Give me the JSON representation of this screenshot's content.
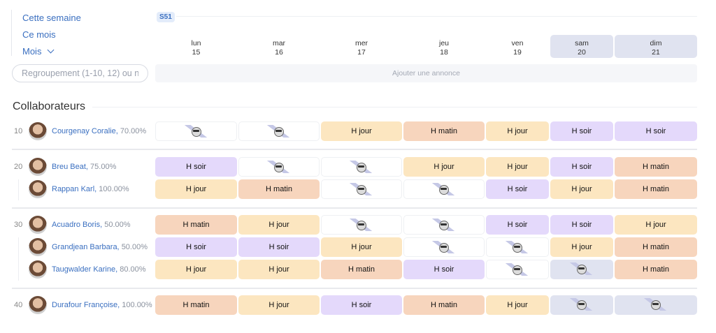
{
  "nav": {
    "this_week": "Cette semaine",
    "this_month": "Ce mois",
    "month": "Mois"
  },
  "search": {
    "placeholder": "Regroupement (1-10, 12) ou nc"
  },
  "week_badge": "S51",
  "days": [
    {
      "name": "lun",
      "num": "15",
      "weekend": false
    },
    {
      "name": "mar",
      "num": "16",
      "weekend": false
    },
    {
      "name": "mer",
      "num": "17",
      "weekend": false
    },
    {
      "name": "jeu",
      "num": "18",
      "weekend": false
    },
    {
      "name": "ven",
      "num": "19",
      "weekend": false
    },
    {
      "name": "sam",
      "num": "20",
      "weekend": true
    },
    {
      "name": "dim",
      "num": "21",
      "weekend": true
    }
  ],
  "add_announcement": "Ajouter une annonce",
  "section_title": "Collaborateurs",
  "shift_labels": {
    "jour": "H jour",
    "matin": "H matin",
    "soir": "H soir"
  },
  "colors": {
    "jour": "#fce6c0",
    "matin": "#f7d5bd",
    "soir": "#e4d9fb",
    "weekend": "#e0e3f0",
    "link": "#3a6fc0"
  },
  "off_icon": "sunglasses-smiley-icon",
  "groups": [
    {
      "number": "10",
      "members": [
        {
          "name": "Courgenay Coralie,",
          "rate": "70.00%",
          "shifts": [
            "off",
            "off",
            "jour",
            "matin",
            "jour",
            "soir",
            "soir"
          ]
        }
      ]
    },
    {
      "number": "20",
      "members": [
        {
          "name": "Breu Beat,",
          "rate": "75.00%",
          "shifts": [
            "soir",
            "off",
            "off",
            "jour",
            "jour",
            "soir",
            "matin"
          ]
        },
        {
          "name": "Rappan Karl,",
          "rate": "100.00%",
          "shifts": [
            "jour",
            "matin",
            "off",
            "off",
            "soir",
            "jour",
            "matin"
          ]
        }
      ]
    },
    {
      "number": "30",
      "members": [
        {
          "name": "Acuadro Boris,",
          "rate": "50.00%",
          "shifts": [
            "matin",
            "jour",
            "off",
            "off",
            "soir",
            "soir",
            "jour"
          ]
        },
        {
          "name": "Grandjean Barbara,",
          "rate": "50.00%",
          "shifts": [
            "soir",
            "soir",
            "jour",
            "off",
            "off",
            "jour",
            "matin"
          ]
        },
        {
          "name": "Taugwalder Karine,",
          "rate": "80.00%",
          "shifts": [
            "jour",
            "jour",
            "matin",
            "soir",
            "off",
            "off",
            "matin"
          ]
        }
      ]
    },
    {
      "number": "40",
      "members": [
        {
          "name": "Durafour Françoise,",
          "rate": "100.00%",
          "shifts": [
            "matin",
            "jour",
            "soir",
            "matin",
            "jour",
            "off",
            "off"
          ]
        }
      ]
    }
  ]
}
